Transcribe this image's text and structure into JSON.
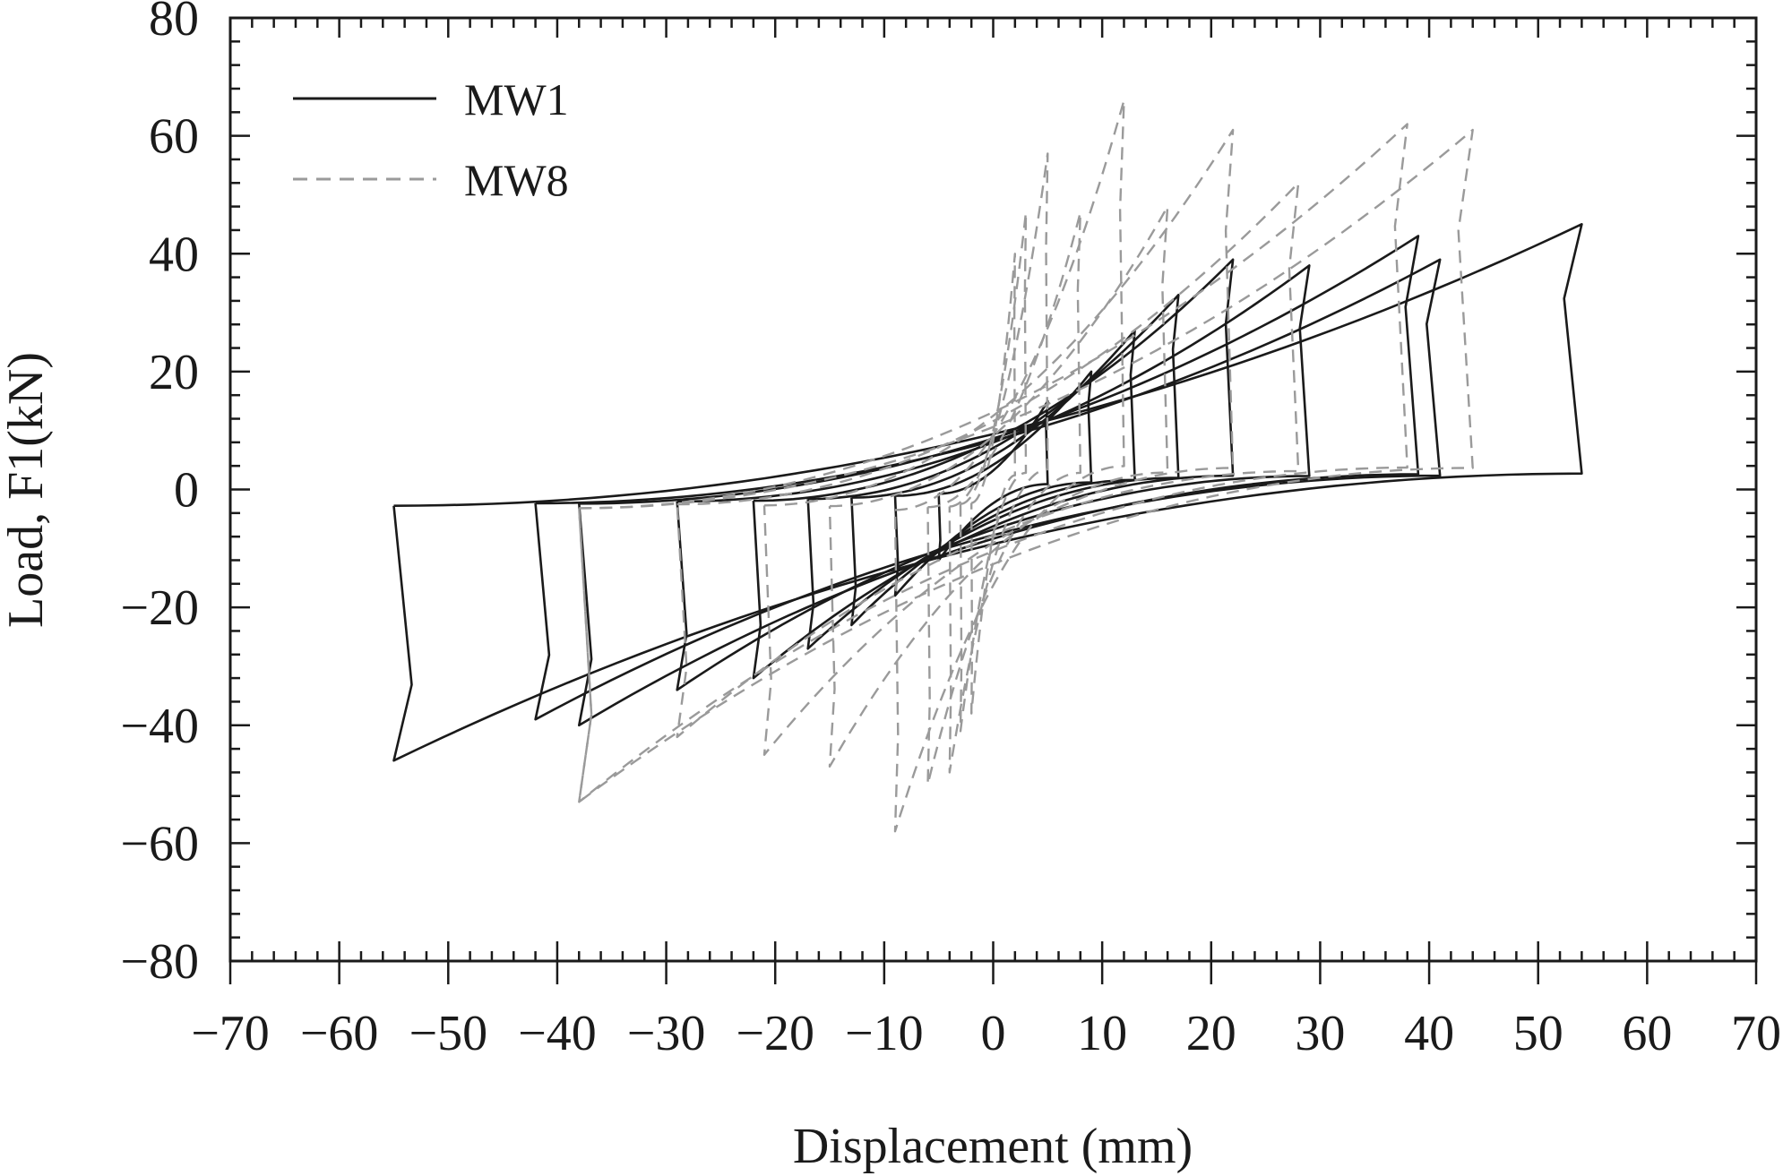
{
  "chart_data": {
    "type": "line",
    "xlabel": "Displacement (mm)",
    "ylabel": "Load, F1(kN)",
    "xlim": [
      -70,
      70
    ],
    "ylim": [
      -80,
      80
    ],
    "x_ticks": [
      -70,
      -60,
      -50,
      -40,
      -30,
      -20,
      -10,
      0,
      10,
      20,
      30,
      40,
      50,
      60,
      70
    ],
    "y_ticks": [
      -80,
      -60,
      -40,
      -20,
      0,
      20,
      40,
      60,
      80
    ],
    "x_tick_labels": [
      "−70",
      "−60",
      "−50",
      "−40",
      "−30",
      "−20",
      "−10",
      "0",
      "10",
      "20",
      "30",
      "40",
      "50",
      "60",
      "70"
    ],
    "y_tick_labels": [
      "−80",
      "−60",
      "−40",
      "−20",
      "0",
      "20",
      "40",
      "60",
      "80"
    ],
    "grid": false,
    "legend_position": "top-left",
    "legend": [
      "MW1",
      "MW8"
    ],
    "series": [
      {
        "name": "MW1",
        "color": "#1a1a1a",
        "dash": "solid",
        "loops": [
          {
            "amp_pos": 5,
            "load_pos": 15,
            "amp_neg": -5,
            "load_neg": -12
          },
          {
            "amp_pos": 9,
            "load_pos": 20,
            "amp_neg": -9,
            "load_neg": -18
          },
          {
            "amp_pos": 13,
            "load_pos": 27,
            "amp_neg": -13,
            "load_neg": -23
          },
          {
            "amp_pos": 17,
            "load_pos": 33,
            "amp_neg": -17,
            "load_neg": -27
          },
          {
            "amp_pos": 22,
            "load_pos": 39,
            "amp_neg": -22,
            "load_neg": -32
          },
          {
            "amp_pos": 29,
            "load_pos": 38,
            "amp_neg": -29,
            "load_neg": -34
          },
          {
            "amp_pos": 39,
            "load_pos": 43,
            "amp_neg": -38,
            "load_neg": -40
          },
          {
            "amp_pos": 41,
            "load_pos": 39,
            "amp_neg": -42,
            "load_neg": -39
          },
          {
            "amp_pos": 54,
            "load_pos": 45,
            "amp_neg": -55,
            "load_neg": -46
          }
        ]
      },
      {
        "name": "MW8",
        "color": "#9a9a9a",
        "dash": "dashed",
        "loops": [
          {
            "amp_pos": 2,
            "load_pos": 40,
            "amp_neg": -2,
            "load_neg": -38
          },
          {
            "amp_pos": 3,
            "load_pos": 47,
            "amp_neg": -3,
            "load_neg": -41
          },
          {
            "amp_pos": 5,
            "load_pos": 57,
            "amp_neg": -4,
            "load_neg": -48
          },
          {
            "amp_pos": 8,
            "load_pos": 47,
            "amp_neg": -6,
            "load_neg": -50
          },
          {
            "amp_pos": 12,
            "load_pos": 66,
            "amp_neg": -9,
            "load_neg": -58
          },
          {
            "amp_pos": 16,
            "load_pos": 48,
            "amp_neg": -15,
            "load_neg": -47
          },
          {
            "amp_pos": 22,
            "load_pos": 61,
            "amp_neg": -21,
            "load_neg": -45
          },
          {
            "amp_pos": 28,
            "load_pos": 52,
            "amp_neg": -29,
            "load_neg": -42
          },
          {
            "amp_pos": 38,
            "load_pos": 62,
            "amp_neg": -38,
            "load_neg": -53
          },
          {
            "amp_pos": 44,
            "load_pos": 61,
            "amp_neg": -38,
            "load_neg": -53
          }
        ]
      }
    ]
  }
}
